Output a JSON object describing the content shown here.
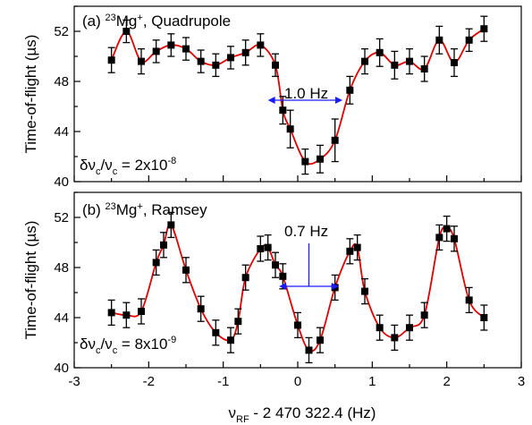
{
  "chart_data": [
    {
      "type": "scatter",
      "panel_label": "(a)",
      "ion": {
        "mass": "23",
        "symbol": "Mg",
        "charge": "+"
      },
      "method": ", Quadrupole",
      "ylabel": "Time-of-flight (µs)",
      "ylim": [
        40,
        54
      ],
      "yticks": [
        "40",
        "44",
        "48",
        "52"
      ],
      "xlim": [
        -3,
        3
      ],
      "resolution": {
        "prefix": "δν",
        "sub": "c",
        "mid": "/ν",
        "sub2": "c",
        "value": " = 2x10",
        "exp": "-8"
      },
      "linewidth_label": "1.0 Hz",
      "linewidth_range": [
        -0.4,
        0.6
      ],
      "linewidth_y": 46.5,
      "series": [
        {
          "x": [
            -2.5,
            -2.3,
            -2.1,
            -1.9,
            -1.7,
            -1.5,
            -1.3,
            -1.1,
            -0.9,
            -0.7,
            -0.5,
            -0.3,
            -0.2,
            -0.1,
            0.1,
            0.3,
            0.5,
            0.7,
            0.9,
            1.1,
            1.3,
            1.5,
            1.7,
            1.9,
            2.1,
            2.3,
            2.5
          ],
          "y": [
            49.7,
            52.0,
            49.6,
            50.4,
            50.9,
            50.6,
            49.6,
            49.3,
            49.9,
            50.3,
            50.9,
            49.3,
            45.7,
            44.2,
            41.6,
            41.8,
            43.3,
            47.3,
            49.6,
            50.3,
            49.3,
            49.6,
            49.0,
            51.3,
            49.5,
            51.3,
            52.2
          ],
          "err": [
            1.0,
            0.9,
            1.0,
            0.9,
            0.9,
            0.9,
            0.9,
            0.9,
            0.9,
            1.0,
            0.9,
            0.9,
            1.1,
            1.5,
            1.0,
            1.1,
            1.7,
            1.1,
            1.0,
            1.1,
            1.1,
            1.0,
            1.0,
            1.1,
            1.1,
            0.9,
            1.0
          ]
        }
      ]
    },
    {
      "type": "scatter",
      "panel_label": "(b)",
      "ion": {
        "mass": "23",
        "symbol": "Mg",
        "charge": "+"
      },
      "method": ", Ramsey",
      "ylabel": "Time-of-flight (µs)",
      "ylim": [
        40,
        54
      ],
      "yticks": [
        "40",
        "44",
        "48",
        "52"
      ],
      "xlim": [
        -3,
        3
      ],
      "xticks": [
        "-3",
        "-2",
        "-1",
        "0",
        "1",
        "2",
        "3"
      ],
      "xlabel": {
        "prefix": "ν",
        "sub": "RF",
        "rest": " - 2 470 322.4 (Hz)"
      },
      "resolution": {
        "prefix": "δν",
        "sub": "c",
        "mid": "/ν",
        "sub2": "c",
        "value": " = 8x10",
        "exp": "-9"
      },
      "linewidth_label": "0.7 Hz",
      "linewidth_range": [
        -0.25,
        0.55
      ],
      "linewidth_y": 46.5,
      "series": [
        {
          "x": [
            -2.5,
            -2.3,
            -2.1,
            -1.9,
            -1.8,
            -1.7,
            -1.5,
            -1.3,
            -1.1,
            -0.9,
            -0.8,
            -0.7,
            -0.5,
            -0.4,
            -0.3,
            -0.2,
            0.0,
            0.15,
            0.3,
            0.5,
            0.7,
            0.8,
            0.9,
            1.1,
            1.3,
            1.5,
            1.7,
            1.9,
            2.0,
            2.1,
            2.3,
            2.5
          ],
          "y": [
            44.4,
            44.2,
            44.5,
            48.4,
            49.8,
            51.4,
            47.8,
            44.7,
            42.8,
            42.2,
            43.7,
            47.2,
            49.5,
            49.6,
            48.2,
            47.3,
            43.4,
            41.4,
            42.2,
            46.4,
            49.3,
            49.6,
            46.1,
            43.2,
            42.4,
            43.2,
            44.2,
            50.4,
            51.1,
            50.3,
            45.4,
            44.0
          ]
        }
      ]
    }
  ]
}
